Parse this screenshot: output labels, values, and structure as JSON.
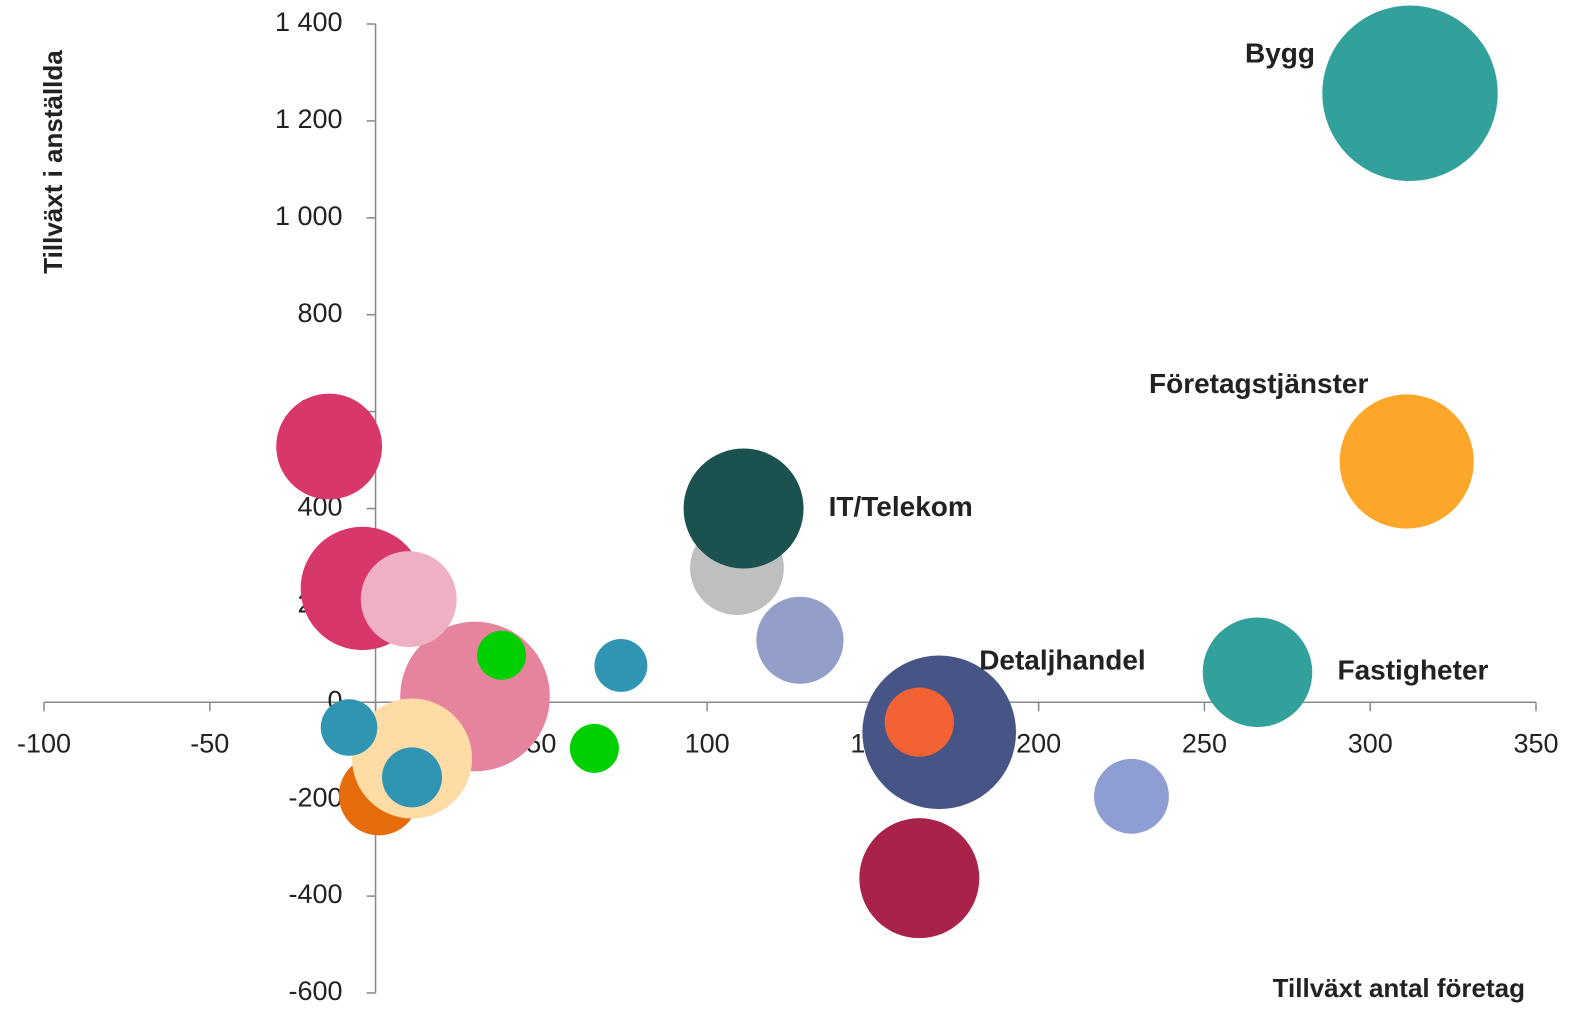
{
  "chart_data": {
    "type": "bubble",
    "x_label": "Tillväxt antal företag",
    "y_label": "Tillväxt i anställda",
    "xlim": [
      -100,
      350
    ],
    "xticks": [
      -100,
      -50,
      0,
      50,
      100,
      150,
      200,
      250,
      300,
      350
    ],
    "ylim": [
      -600,
      1400
    ],
    "yticks": [
      -600,
      -400,
      -200,
      0,
      200,
      400,
      600,
      800,
      {
        "value": 1000,
        "label": "1 000"
      },
      {
        "value": 1200,
        "label": "1 200"
      },
      {
        "value": 1400,
        "label": "1 400"
      }
    ],
    "x": [
      30,
      -14,
      -4,
      10,
      38,
      1,
      11,
      -8,
      11,
      66,
      74,
      109,
      128,
      111,
      170,
      164,
      164,
      228,
      266,
      311,
      312
    ],
    "values": [
      12,
      528,
      235,
      213,
      97,
      -192,
      -116,
      -52,
      -155,
      -95,
      76,
      277,
      128,
      400,
      -62,
      -41,
      -363,
      -194,
      62,
      497,
      1257
    ],
    "sizes": [
      56,
      28,
      38,
      23,
      6,
      16,
      36,
      8,
      9,
      6,
      7,
      22,
      19,
      36,
      59,
      12,
      36,
      14,
      30,
      45,
      77
    ],
    "colors": [
      "#e6849e",
      "#d8376a",
      "#d8376a",
      "#efb0c4",
      "#00d000",
      "#e56b0b",
      "#ffdca6",
      "#2f95b2",
      "#2f95b2",
      "#00d000",
      "#2f95b2",
      "#bfbfbf",
      "#939fc8",
      "#1b524f",
      "#465586",
      "#f26235",
      "#a82249",
      "#8f9ed2",
      "#33a19b",
      "#fda629",
      "#33a19b"
    ],
    "labels": [
      null,
      null,
      null,
      null,
      null,
      null,
      null,
      null,
      null,
      null,
      null,
      null,
      null,
      "IT/Telekom",
      "Detaljhandel",
      null,
      null,
      null,
      "Fastigheter",
      "Företagstjänster",
      "Bygg"
    ]
  }
}
